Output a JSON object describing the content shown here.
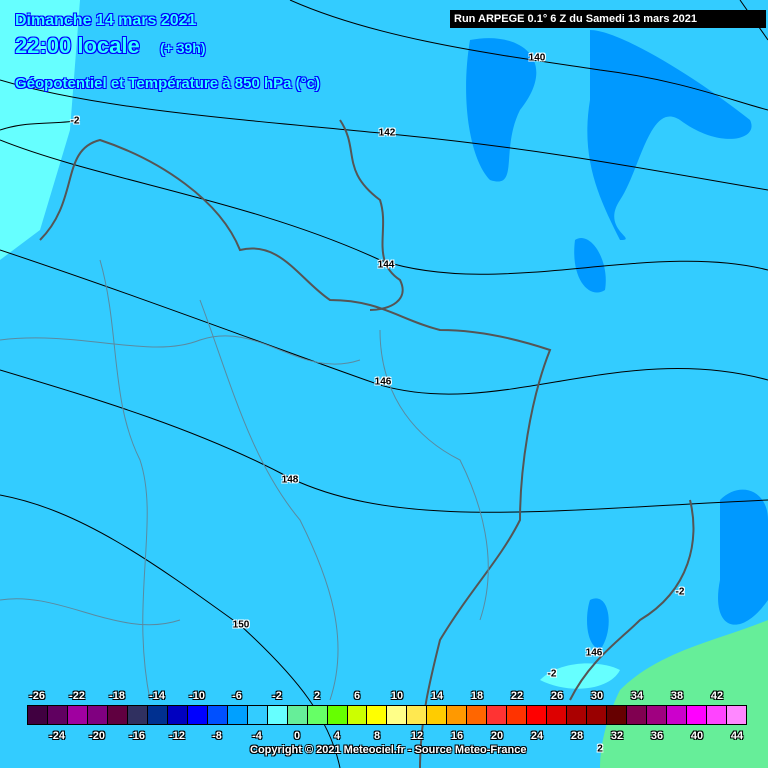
{
  "header": {
    "date": "Dimanche 14 mars 2021",
    "time": "22:00 locale",
    "lead": "(+ 39h)",
    "parameter": "Géopotentiel et Température à 850 hPa (°c)"
  },
  "run_label": "Run ARPEGE 0.1° 6 Z du Samedi 13 mars 2021",
  "contour_labels": [
    "140",
    "142",
    "144",
    "146",
    "148",
    "150",
    "-2",
    "-2",
    "-2",
    "146",
    "2"
  ],
  "legend": {
    "top_labels": [
      "-26",
      "-22",
      "-18",
      "-14",
      "-10",
      "-6",
      "-2",
      "2",
      "6",
      "10",
      "14",
      "18",
      "22",
      "26",
      "30",
      "34",
      "38",
      "42"
    ],
    "bottom_labels": [
      "-24",
      "-20",
      "-16",
      "-12",
      "-8",
      "-4",
      "0",
      "4",
      "8",
      "12",
      "16",
      "20",
      "24",
      "28",
      "32",
      "36",
      "40",
      "44"
    ],
    "colors": [
      "#400040",
      "#600060",
      "#a000a0",
      "#800080",
      "#600040",
      "#303060",
      "#003090",
      "#0000c0",
      "#0000ff",
      "#0050ff",
      "#00a0ff",
      "#33ccff",
      "#66ffff",
      "#66ee99",
      "#66ff66",
      "#66ff00",
      "#ccff00",
      "#ffff00",
      "#ffff88",
      "#ffe850",
      "#ffcc00",
      "#ff9900",
      "#ff6600",
      "#ff3333",
      "#ff3300",
      "#ff0000",
      "#dd0000",
      "#aa0000",
      "#990000",
      "#660000",
      "#800050",
      "#a00080",
      "#cc00cc",
      "#ff00ff",
      "#ff44ff",
      "#ff88ff"
    ]
  },
  "copyright": "Copyright © 2021 Meteociel.fr - Source Meteo-France",
  "colors": {
    "background": "#33ccff",
    "cold_zone": "#66ffff",
    "colder_patches": "#0099ff",
    "warm_zone": "#66ee99"
  }
}
